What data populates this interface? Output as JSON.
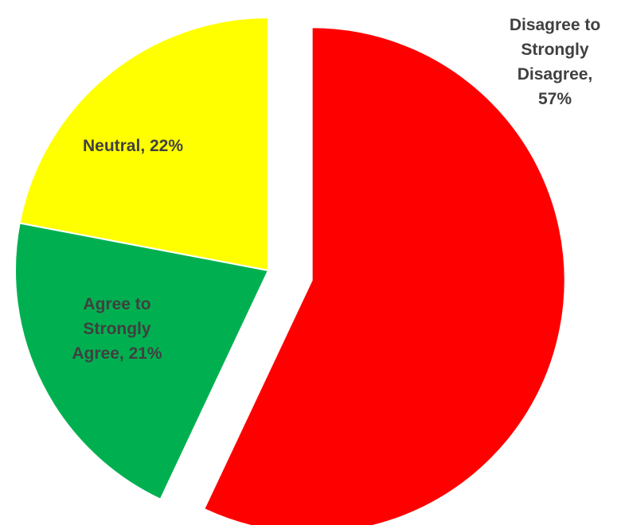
{
  "chart_data": {
    "type": "pie",
    "title": "",
    "legend": "none",
    "slices": [
      {
        "label": "Disagree to Strongly Disagree",
        "label_lines": [
          "Disagree to",
          "Strongly",
          "Disagree,",
          "57%"
        ],
        "value": 57,
        "color": "#ff0000",
        "exploded": true
      },
      {
        "label": "Agree to Strongly Agree",
        "label_lines": [
          "Agree to",
          "Strongly",
          "Agree, 21%"
        ],
        "value": 21,
        "color": "#00b050",
        "exploded": false
      },
      {
        "label": "Neutral",
        "label_lines": [
          "Neutral, 22%"
        ],
        "value": 22,
        "color": "#ffff00",
        "exploded": false
      }
    ]
  }
}
